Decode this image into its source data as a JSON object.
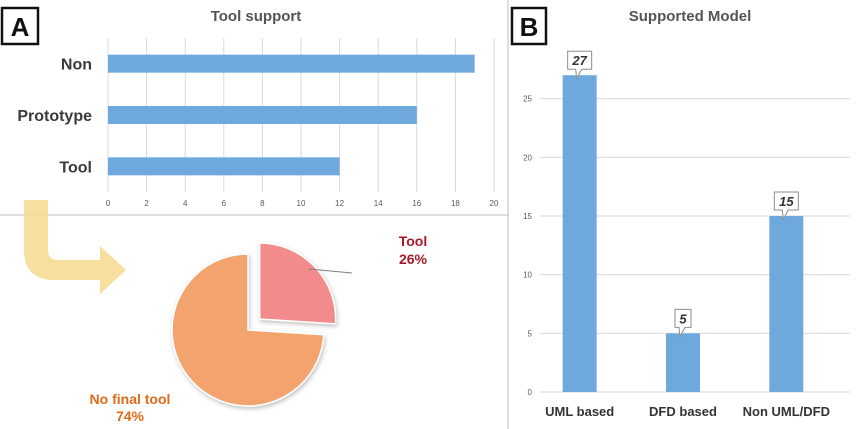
{
  "panel_a": {
    "letter": "A"
  },
  "panel_b": {
    "letter": "B"
  },
  "chart_data": [
    {
      "type": "bar",
      "orientation": "horizontal",
      "title": "Tool support",
      "categories": [
        "Non",
        "Prototype",
        "Tool"
      ],
      "values": [
        19,
        16,
        12
      ],
      "xlim": [
        0,
        20
      ],
      "xticks": [
        0,
        2,
        4,
        6,
        8,
        10,
        12,
        14,
        16,
        18,
        20
      ],
      "grid": true,
      "color": "#6fa8dc"
    },
    {
      "type": "pie",
      "categories": [
        "Tool",
        "No final tool"
      ],
      "values": [
        26,
        74
      ],
      "labels": [
        "26%",
        "74%"
      ],
      "colors": [
        "#f28b8b",
        "#f3a46e"
      ],
      "exploded": [
        "Tool"
      ]
    },
    {
      "type": "bar",
      "title": "Supported Model",
      "categories": [
        "UML based",
        "DFD based",
        "Non UML/DFD"
      ],
      "values": [
        27,
        5,
        15
      ],
      "data_labels": [
        "27",
        "5",
        "15"
      ],
      "ylim": [
        0,
        30
      ],
      "yticks": [
        0,
        5,
        10,
        15,
        20,
        25
      ],
      "grid": true,
      "color": "#6fa8dc"
    }
  ]
}
